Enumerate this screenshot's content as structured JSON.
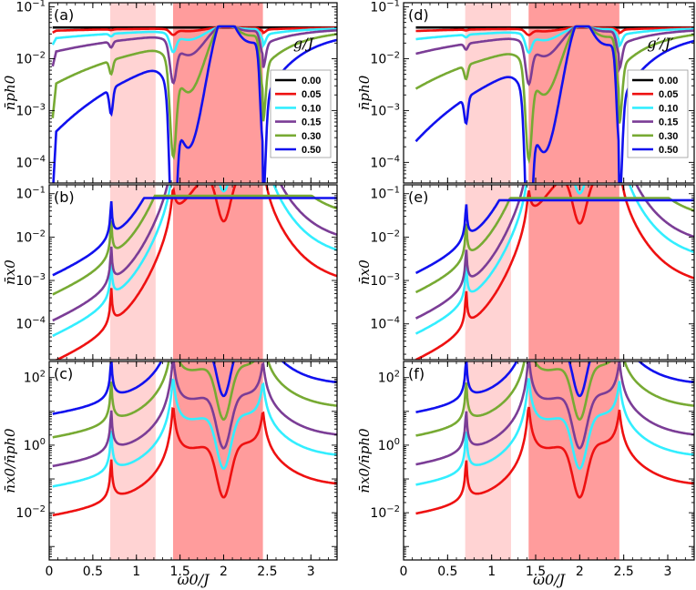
{
  "figure": {
    "panel_label_prefix": "(",
    "panel_label_suffix": ")"
  },
  "chart_data": [
    {
      "id": "a",
      "type": "line",
      "panel_label": "(a)",
      "ylabel_main": "n",
      "ylabel_sub": "ph0",
      "ylabel_text": "n̄ph0",
      "ylog": true,
      "ylim": [
        4e-05,
        0.12
      ],
      "yticks": [
        {
          "v": 0.1,
          "l": "10-1"
        },
        {
          "v": 0.01,
          "l": "10-2"
        },
        {
          "v": 0.001,
          "l": "10-3"
        },
        {
          "v": 0.0001,
          "l": "10-4"
        }
      ],
      "legend": {
        "title": "g/J",
        "entries": [
          "0.00",
          "0.05",
          "0.10",
          "0.15",
          "0.30",
          "0.50"
        ]
      }
    },
    {
      "id": "b",
      "type": "line",
      "panel_label": "(b)",
      "ylabel_main": "n",
      "ylabel_sub": "x0",
      "ylabel_text": "n̄x0",
      "ylog": true,
      "ylim": [
        1.5e-05,
        0.16
      ],
      "yticks": [
        {
          "v": 0.1,
          "l": "10-1"
        },
        {
          "v": 0.01,
          "l": "10-2"
        },
        {
          "v": 0.001,
          "l": "10-3"
        },
        {
          "v": 0.0001,
          "l": "10-4"
        }
      ]
    },
    {
      "id": "c",
      "type": "line",
      "panel_label": "(c)",
      "ylabel_main": "n",
      "ylabel_sub": "x0/n̄ph0",
      "ylabel_text": "n̄x0/n̄ph0",
      "ylog": true,
      "ylim": [
        0.0004,
        300
      ],
      "yticks": [
        {
          "v": 100,
          "l": "102"
        },
        {
          "v": 1,
          "l": "100"
        },
        {
          "v": 0.01,
          "l": "10-2"
        }
      ]
    },
    {
      "id": "d",
      "type": "line",
      "panel_label": "(d)",
      "ylabel_main": "n",
      "ylabel_sub": "ph0",
      "ylabel_text": "n̄ph0",
      "ylog": true,
      "ylim": [
        4e-05,
        0.12
      ],
      "yticks": [
        {
          "v": 0.1,
          "l": "10-1"
        },
        {
          "v": 0.01,
          "l": "10-2"
        },
        {
          "v": 0.001,
          "l": "10-3"
        },
        {
          "v": 0.0001,
          "l": "10-4"
        }
      ],
      "legend": {
        "title": "g′/J′",
        "entries": [
          "0.00",
          "0.05",
          "0.10",
          "0.15",
          "0.30",
          "0.50"
        ]
      }
    },
    {
      "id": "e",
      "type": "line",
      "panel_label": "(e)",
      "ylabel_main": "n",
      "ylabel_sub": "x0",
      "ylabel_text": "n̄x0",
      "ylog": true,
      "ylim": [
        1.5e-05,
        0.16
      ],
      "yticks": [
        {
          "v": 0.1,
          "l": "10-1"
        },
        {
          "v": 0.01,
          "l": "10-2"
        },
        {
          "v": 0.001,
          "l": "10-3"
        },
        {
          "v": 0.0001,
          "l": "10-4"
        }
      ]
    },
    {
      "id": "f",
      "type": "line",
      "panel_label": "(f)",
      "ylabel_main": "n",
      "ylabel_sub": "x0/n̄ph0",
      "ylabel_text": "n̄x0/n̄ph0",
      "ylog": true,
      "ylim": [
        0.0004,
        300
      ],
      "yticks": [
        {
          "v": 100,
          "l": "102"
        },
        {
          "v": 1,
          "l": "100"
        },
        {
          "v": 0.01,
          "l": "10-2"
        }
      ]
    }
  ],
  "shared": {
    "xlabel": "ω0/J",
    "xlim": [
      0,
      3.3
    ],
    "xticks": [
      "0",
      "0.5",
      "1",
      "1.5",
      "2",
      "2.5",
      "3"
    ],
    "xtick_values": [
      0,
      0.5,
      1,
      1.5,
      2,
      2.5,
      3
    ],
    "bands": [
      {
        "from": 0.7,
        "to": 1.22,
        "color": "#ffd3d3"
      },
      {
        "from": 1.42,
        "to": 2.45,
        "color": "#ff9c9c"
      }
    ],
    "series_colors": [
      "#000000",
      "#ee1111",
      "#33eeff",
      "#7b3d96",
      "#77aa33",
      "#1111ee"
    ],
    "series_names": [
      "0.00",
      "0.05",
      "0.10",
      "0.15",
      "0.30",
      "0.50"
    ]
  }
}
